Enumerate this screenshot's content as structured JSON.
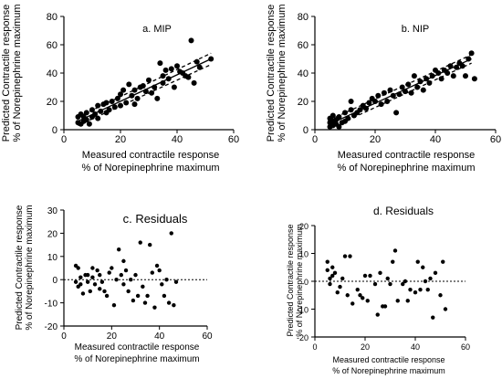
{
  "chart_data": [
    {
      "id": "a",
      "type": "scatter",
      "title": "a. MIP",
      "xlabel": [
        "Measured contractile response",
        "% of Norepinephrine maximum"
      ],
      "ylabel": [
        "Predicted Contractile response",
        "% of Norepinephrine maximum"
      ],
      "xlim": [
        0,
        60
      ],
      "ylim": [
        0,
        80
      ],
      "xticks": [
        0,
        20,
        40,
        60
      ],
      "yticks": [
        0,
        20,
        40,
        60,
        80
      ],
      "fit": {
        "x": [
          5,
          52
        ],
        "y": [
          6,
          50
        ]
      },
      "ci_upper": {
        "x": [
          5,
          52
        ],
        "y": [
          9,
          54
        ]
      },
      "ci_lower": {
        "x": [
          5,
          52
        ],
        "y": [
          3,
          46
        ]
      },
      "points": {
        "x": [
          5,
          5,
          6,
          6,
          7,
          7,
          8,
          8,
          9,
          10,
          10,
          11,
          12,
          12,
          13,
          14,
          15,
          15,
          16,
          17,
          18,
          19,
          20,
          20,
          21,
          22,
          23,
          24,
          25,
          25,
          26,
          27,
          28,
          29,
          30,
          31,
          32,
          33,
          34,
          35,
          35,
          36,
          37,
          38,
          39,
          40,
          41,
          42,
          43,
          44,
          45,
          46,
          47,
          48,
          52
        ],
        "y": [
          5,
          9,
          4,
          11,
          6,
          9,
          7,
          12,
          4,
          9,
          14,
          11,
          8,
          17,
          13,
          18,
          12,
          19,
          14,
          20,
          16,
          22,
          17,
          25,
          28,
          19,
          32,
          24,
          18,
          28,
          22,
          30,
          31,
          27,
          35,
          26,
          30,
          22,
          47,
          38,
          33,
          42,
          36,
          43,
          30,
          45,
          41,
          40,
          38,
          37,
          63,
          33,
          48,
          44,
          50
        ]
      }
    },
    {
      "id": "b",
      "type": "scatter",
      "title": "b. NIP",
      "xlabel": [
        "Measured contractile response",
        "% of Norepinephrine maximum"
      ],
      "ylabel": [
        "Predicted Contractile response",
        "% of Norepinephrine maximum"
      ],
      "xlim": [
        0,
        60
      ],
      "ylim": [
        0,
        80
      ],
      "xticks": [
        0,
        20,
        40,
        60
      ],
      "yticks": [
        0,
        20,
        40,
        60,
        80
      ],
      "fit": {
        "x": [
          5,
          52
        ],
        "y": [
          4,
          50
        ]
      },
      "ci_upper": {
        "x": [
          5,
          52
        ],
        "y": [
          7,
          53
        ]
      },
      "ci_lower": {
        "x": [
          5,
          52
        ],
        "y": [
          1,
          47
        ]
      },
      "points": {
        "x": [
          5,
          5,
          5,
          6,
          6,
          6,
          7,
          7,
          8,
          8,
          9,
          10,
          10,
          11,
          12,
          12,
          13,
          14,
          15,
          16,
          17,
          18,
          19,
          20,
          21,
          22,
          23,
          24,
          25,
          26,
          27,
          28,
          29,
          30,
          31,
          32,
          33,
          34,
          35,
          36,
          37,
          38,
          39,
          40,
          41,
          42,
          43,
          44,
          45,
          46,
          47,
          48,
          49,
          50,
          51,
          52,
          53
        ],
        "y": [
          2,
          5,
          8,
          3,
          10,
          6,
          4,
          7,
          2,
          9,
          5,
          6,
          12,
          8,
          14,
          20,
          10,
          12,
          14,
          17,
          15,
          19,
          22,
          20,
          24,
          18,
          26,
          20,
          28,
          24,
          12,
          25,
          30,
          27,
          32,
          26,
          38,
          30,
          34,
          28,
          36,
          33,
          38,
          42,
          40,
          36,
          42,
          40,
          45,
          38,
          44,
          47,
          45,
          38,
          50,
          54,
          36
        ]
      }
    },
    {
      "id": "c",
      "type": "scatter",
      "title": "c. Residuals",
      "xlabel": [
        "Measured contractile response",
        "% of Norepinephrine maximum"
      ],
      "ylabel": [
        "Predicted Contractile response",
        "% of Norepinephrine maximum"
      ],
      "xlim": [
        0,
        60
      ],
      "ylim": [
        -20,
        30
      ],
      "xticks": [
        0,
        20,
        40,
        60
      ],
      "yticks": [
        -20,
        -10,
        0,
        10,
        20,
        30
      ],
      "zero_line": true,
      "points": {
        "x": [
          5,
          5,
          6,
          6,
          7,
          7,
          8,
          9,
          10,
          10,
          11,
          12,
          12,
          13,
          14,
          15,
          15,
          16,
          17,
          18,
          19,
          20,
          21,
          22,
          23,
          24,
          25,
          25,
          26,
          27,
          28,
          29,
          30,
          31,
          32,
          33,
          34,
          35,
          36,
          37,
          38,
          39,
          40,
          41,
          42,
          43,
          44,
          45,
          46,
          47
        ],
        "y": [
          6,
          -1,
          5,
          -3,
          1,
          -2,
          -6,
          2,
          -1,
          2,
          -5,
          5,
          1,
          -2,
          4,
          -4,
          2,
          -1,
          -5,
          -7,
          3,
          5,
          -11,
          0,
          13,
          2,
          -2,
          8,
          4,
          -5,
          0,
          -9,
          2,
          -7,
          16,
          -3,
          -10,
          -7,
          15,
          3,
          -12,
          6,
          4,
          -2,
          -7,
          0,
          -10,
          20,
          -11,
          -1
        ]
      }
    },
    {
      "id": "d",
      "type": "scatter",
      "title": "d. Residuals",
      "xlabel": [
        "Measured contractile response",
        "% of Norepinephrine maximum"
      ],
      "ylabel": [
        "Predicted Contractile response",
        "% of Norepinephrine maximum"
      ],
      "xlim": [
        0,
        60
      ],
      "ylim": [
        -20,
        20
      ],
      "xticks": [
        0,
        20,
        40,
        60
      ],
      "yticks": [
        -20,
        -10,
        0,
        10,
        20
      ],
      "zero_line": true,
      "points": {
        "x": [
          5,
          5,
          6,
          6,
          7,
          7,
          8,
          9,
          10,
          11,
          12,
          13,
          14,
          15,
          17,
          18,
          19,
          20,
          21,
          22,
          24,
          25,
          26,
          27,
          28,
          29,
          30,
          31,
          32,
          33,
          35,
          36,
          37,
          38,
          40,
          41,
          42,
          43,
          44,
          45,
          46,
          47,
          48,
          50,
          51,
          52
        ],
        "y": [
          4,
          7,
          1,
          -1,
          5,
          2,
          3,
          -4,
          -2,
          1,
          9,
          -5,
          9,
          -8,
          -3,
          -5,
          -6,
          2,
          -7,
          2,
          -1,
          -12,
          3,
          -9,
          -9,
          1,
          -1,
          7,
          11,
          -7,
          -1,
          0,
          -7,
          -3,
          -4,
          7,
          -3,
          5,
          0,
          -3,
          1,
          -13,
          3,
          -5,
          7,
          -10
        ]
      }
    }
  ]
}
